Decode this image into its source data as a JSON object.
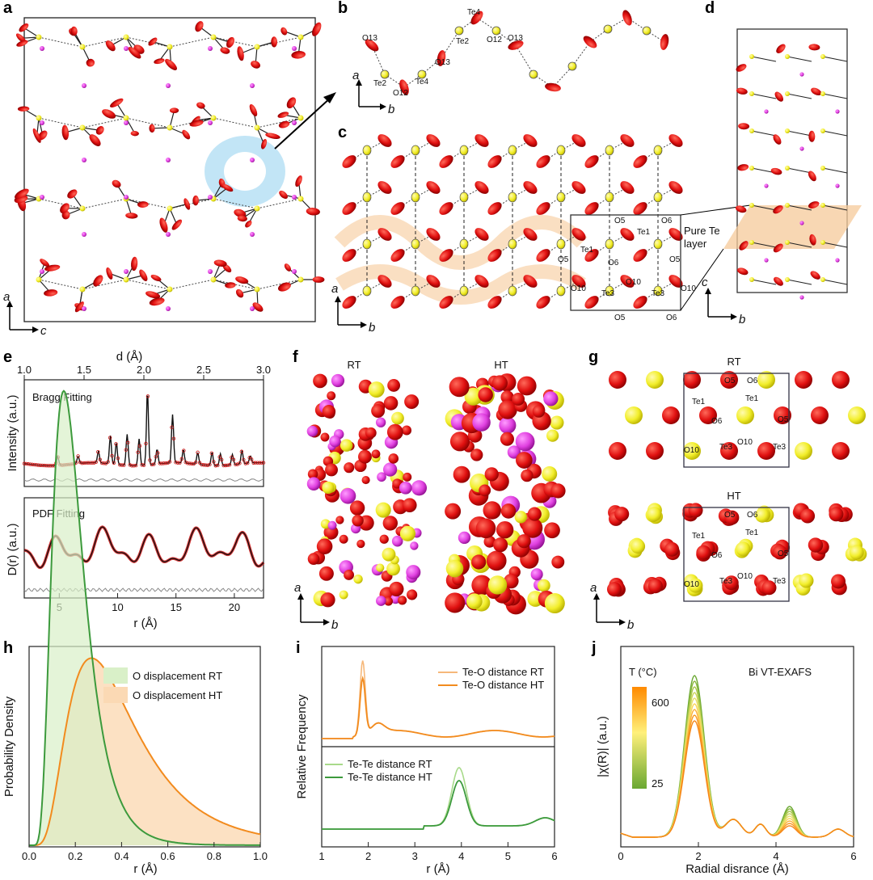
{
  "panels": {
    "a": {
      "label": "a",
      "axis_v": "a",
      "axis_h": "c"
    },
    "b": {
      "label": "b",
      "atoms": [
        "O13",
        "Te2",
        "O12",
        "Te4",
        "O13",
        "Te2",
        "Te4",
        "O12",
        "O13"
      ],
      "axis_v": "a",
      "axis_h": "b"
    },
    "c": {
      "label": "c",
      "atoms": [
        "O5",
        "O6",
        "Te1",
        "O5",
        "Te1",
        "O5",
        "O6",
        "O10",
        "O10",
        "Te3",
        "Te3",
        "O10",
        "O5",
        "O6"
      ],
      "axis_v": "a",
      "axis_h": "b"
    },
    "d": {
      "label": "d",
      "annotation": "Pure Te",
      "annotation2": "layer",
      "axis_v": "c",
      "axis_h": "b"
    },
    "e": {
      "label": "e",
      "top_xlabel": "d (Å)",
      "top_ticks": [
        "1.0",
        "1.5",
        "2.0",
        "2.5",
        "3.0"
      ],
      "bragg_title": "Bragg Fitting",
      "bragg_ylabel": "Intensity (a.u.)",
      "pdf_title": "PDF Fitting",
      "pdf_ylabel": "D(r) (a.u.)",
      "xlabel": "r (Å)",
      "xticks": [
        "5",
        "10",
        "15",
        "20"
      ]
    },
    "f": {
      "label": "f",
      "left": "RT",
      "right": "HT",
      "axis_v": "a",
      "axis_h": "b"
    },
    "g": {
      "label": "g",
      "top": "RT",
      "bottom": "HT",
      "axis_v": "a",
      "axis_h": "b",
      "rt_atoms": [
        "O5",
        "O6",
        "Te1",
        "Te1",
        "O6",
        "O5",
        "O10",
        "Te3",
        "O10",
        "Te3"
      ],
      "ht_atoms": [
        "O5",
        "O6",
        "Te1",
        "Te1",
        "O6",
        "O5",
        "O10",
        "Te3",
        "O10",
        "Te3"
      ]
    },
    "h": {
      "label": "h",
      "ylabel": "Probability Density",
      "xlabel": "r (Å)",
      "xticks": [
        "0.0",
        "0.2",
        "0.4",
        "0.6",
        "0.8",
        "1.0"
      ],
      "legend": [
        "O displacement RT",
        "O displacement HT"
      ]
    },
    "i": {
      "label": "i",
      "ylabel": "Relative Frequency",
      "xlabel": "r (Å)",
      "xticks": [
        "1",
        "2",
        "3",
        "4",
        "5",
        "6"
      ],
      "legend_top": [
        "Te-O distance RT",
        "Te-O distance HT"
      ],
      "legend_bottom": [
        "Te-Te distance RT",
        "Te-Te distance HT"
      ]
    },
    "j": {
      "label": "j",
      "ylabel": "|χ(R)| (a.u.)",
      "xlabel": "Radial disrance (Å)",
      "xticks": [
        "0",
        "2",
        "4",
        "6"
      ],
      "title": "Bi VT-EXAFS",
      "colorbar_title": "T (°C)",
      "colorbar_max": "600",
      "colorbar_min": "25"
    }
  },
  "colors": {
    "oxygen": "#e01010",
    "tellurium": "#f2ee2a",
    "bismuth": "#e040e0",
    "rt_green": "#6abf45",
    "ht_orange": "#f28b1e",
    "fit_red": "#cc1111"
  },
  "chart_data": [
    {
      "type": "line",
      "id": "e-bragg",
      "title": "Bragg Fitting",
      "xlabel": "d (Å)",
      "ylabel": "Intensity (a.u.)",
      "xlim": [
        1.0,
        3.0
      ],
      "peaks": [
        {
          "d": 1.28,
          "h": 0.12
        },
        {
          "d": 1.45,
          "h": 0.1
        },
        {
          "d": 1.62,
          "h": 0.16
        },
        {
          "d": 1.72,
          "h": 0.38
        },
        {
          "d": 1.77,
          "h": 0.3
        },
        {
          "d": 1.86,
          "h": 0.42
        },
        {
          "d": 1.96,
          "h": 0.36
        },
        {
          "d": 2.03,
          "h": 1.0
        },
        {
          "d": 2.11,
          "h": 0.2
        },
        {
          "d": 2.24,
          "h": 0.65
        },
        {
          "d": 2.33,
          "h": 0.18
        },
        {
          "d": 2.45,
          "h": 0.16
        },
        {
          "d": 2.57,
          "h": 0.18
        },
        {
          "d": 2.64,
          "h": 0.16
        },
        {
          "d": 2.74,
          "h": 0.14
        },
        {
          "d": 2.82,
          "h": 0.18
        },
        {
          "d": 2.89,
          "h": 0.1
        }
      ]
    },
    {
      "type": "line",
      "id": "e-pdf",
      "title": "PDF Fitting",
      "xlabel": "r (Å)",
      "ylabel": "D(r) (a.u.)",
      "xlim": [
        2,
        22.5
      ]
    },
    {
      "type": "area",
      "id": "h",
      "xlabel": "r (Å)",
      "ylabel": "Probability Density",
      "xlim": [
        0,
        1.0
      ],
      "series": [
        {
          "name": "O displacement RT",
          "mode": 0.15,
          "spread": 0.065
        },
        {
          "name": "O displacement HT",
          "mode": 0.27,
          "spread": 0.16
        }
      ]
    },
    {
      "type": "line",
      "id": "i",
      "xlabel": "r (Å)",
      "ylabel": "Relative Frequency",
      "xlim": [
        1,
        6
      ],
      "series": [
        {
          "name": "Te-O distance RT",
          "peak": 1.88
        },
        {
          "name": "Te-O distance HT",
          "peak": 1.9
        },
        {
          "name": "Te-Te distance RT",
          "peak": 3.95
        },
        {
          "name": "Te-Te distance HT",
          "peak": 4.0
        }
      ]
    },
    {
      "type": "line",
      "id": "j",
      "title": "Bi VT-EXAFS",
      "xlabel": "Radial disrance (Å)",
      "ylabel": "|χ(R)| (a.u.)",
      "xlim": [
        0,
        6
      ],
      "temperature_range": [
        25,
        600
      ]
    }
  ]
}
